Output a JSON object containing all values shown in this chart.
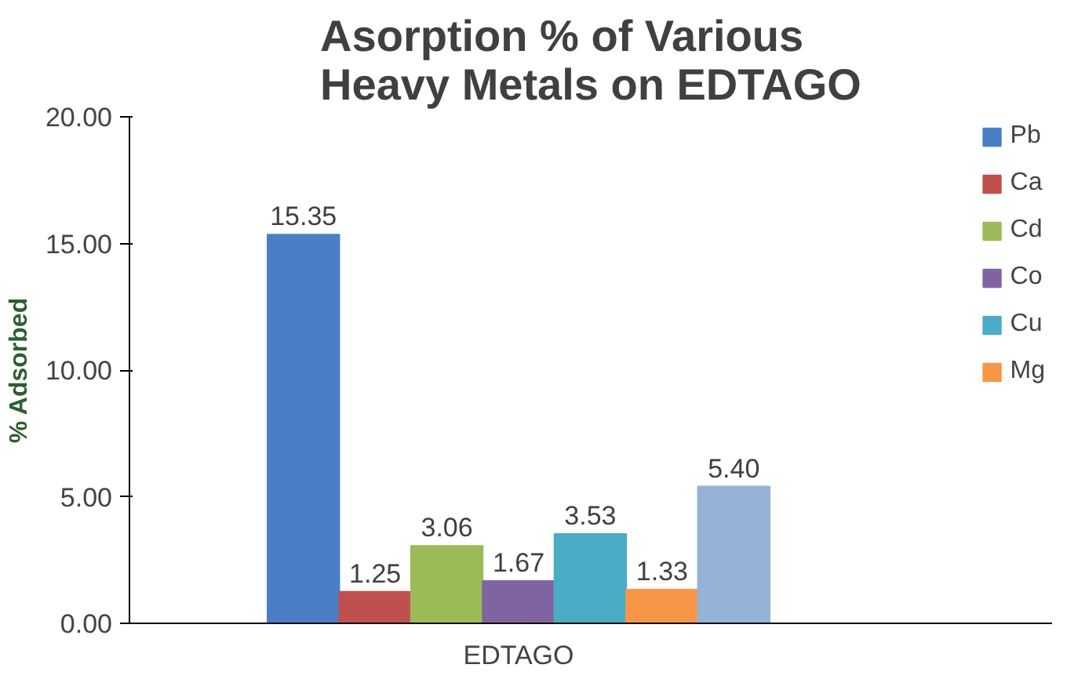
{
  "chart_data": {
    "type": "bar",
    "title": "Asorption % of Various\nHeavy Metals on EDTAGO",
    "ylabel": "% Adsorbed",
    "categories": [
      "EDTAGO"
    ],
    "series": [
      {
        "name": "Pb",
        "color": "#4a7fc8",
        "values": [
          15.35
        ],
        "value_labels": [
          "15.35"
        ]
      },
      {
        "name": "Ca",
        "color": "#c0504d",
        "values": [
          1.25
        ],
        "value_labels": [
          "1.25"
        ]
      },
      {
        "name": "Cd",
        "color": "#9bbb59",
        "values": [
          3.06
        ],
        "value_labels": [
          "3.06"
        ]
      },
      {
        "name": "Co",
        "color": "#8064a2",
        "values": [
          1.67
        ],
        "value_labels": [
          "1.67"
        ]
      },
      {
        "name": "Cu",
        "color": "#4bacc6",
        "values": [
          3.53
        ],
        "value_labels": [
          "3.53"
        ]
      },
      {
        "name": "Mg",
        "color": "#f79646",
        "values": [
          1.33
        ],
        "value_labels": [
          "1.33"
        ]
      },
      {
        "color": "#95b3d7",
        "values": [
          5.4
        ],
        "value_labels": [
          "5.40"
        ]
      }
    ],
    "ylim": [
      0,
      20
    ],
    "yticks": [
      {
        "value": 0,
        "label": "0.00"
      },
      {
        "value": 5,
        "label": "5.00"
      },
      {
        "value": 10,
        "label": "10.00"
      },
      {
        "value": 15,
        "label": "15.00"
      },
      {
        "value": 20,
        "label": "20.00"
      }
    ],
    "legend": "right",
    "grid": false
  }
}
